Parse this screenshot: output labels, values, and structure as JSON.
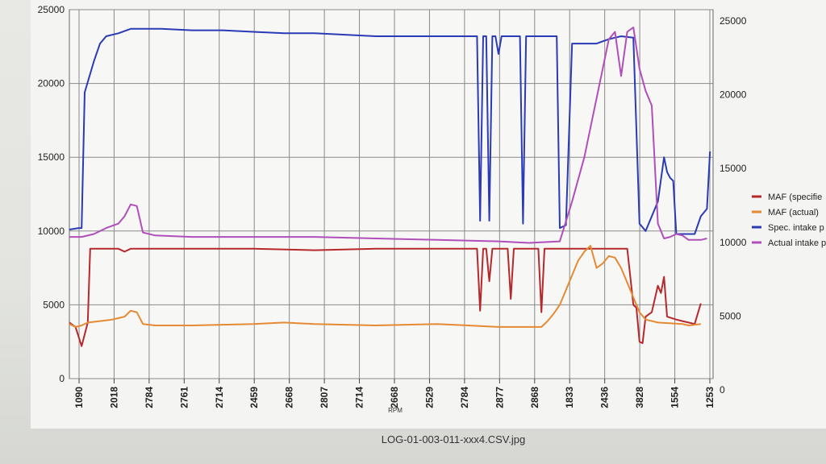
{
  "caption": "LOG-01-003-011-xxx4.CSV.jpg",
  "chart_data": {
    "type": "line",
    "xlabel": "RPM",
    "x_tick_labels": [
      "1090",
      "2018",
      "2784",
      "2761",
      "2714",
      "2459",
      "2668",
      "2807",
      "2714",
      "2668",
      "2529",
      "2784",
      "2877",
      "2868",
      "1833",
      "2436",
      "3828",
      "1554",
      "1253"
    ],
    "y_left": {
      "min": 0,
      "max": 25000,
      "ticks": [
        0,
        5000,
        10000,
        15000,
        20000,
        25000
      ]
    },
    "y_right": {
      "min": 0,
      "max": 25000,
      "ticks": [
        0,
        5000,
        10000,
        15000,
        20000,
        25000
      ]
    },
    "grid": true,
    "legend_position": "right",
    "x_range": [
      0,
      100
    ],
    "series": [
      {
        "name": "MAF (specifie",
        "color": "#b5292c",
        "axis": "left",
        "points": [
          [
            0,
            3800
          ],
          [
            1,
            3500
          ],
          [
            2,
            2200
          ],
          [
            3,
            3800
          ],
          [
            3.4,
            8800
          ],
          [
            8,
            8800
          ],
          [
            9,
            8600
          ],
          [
            10,
            8800
          ],
          [
            20,
            8800
          ],
          [
            30,
            8800
          ],
          [
            40,
            8700
          ],
          [
            50,
            8800
          ],
          [
            60,
            8800
          ],
          [
            65,
            8800
          ],
          [
            66.5,
            8800
          ],
          [
            67,
            4600
          ],
          [
            67.5,
            8800
          ],
          [
            68,
            8800
          ],
          [
            68.5,
            6600
          ],
          [
            69,
            8800
          ],
          [
            71.5,
            8800
          ],
          [
            72,
            5400
          ],
          [
            72.5,
            8800
          ],
          [
            76.5,
            8800
          ],
          [
            77,
            4500
          ],
          [
            77.5,
            8800
          ],
          [
            84,
            8800
          ],
          [
            90,
            8800
          ],
          [
            91,
            8800
          ],
          [
            92,
            5000
          ],
          [
            92.5,
            4800
          ],
          [
            93,
            2500
          ],
          [
            93.5,
            2400
          ],
          [
            94,
            4200
          ],
          [
            95,
            4500
          ],
          [
            96,
            6300
          ],
          [
            96.5,
            5800
          ],
          [
            97,
            6900
          ],
          [
            97.5,
            4200
          ],
          [
            99,
            4000
          ],
          [
            100,
            3900
          ],
          [
            101,
            3800
          ],
          [
            102,
            3700
          ],
          [
            103,
            5100
          ]
        ]
      },
      {
        "name": "MAF (actual)",
        "color": "#e58a34",
        "axis": "left",
        "points": [
          [
            0,
            3700
          ],
          [
            1,
            3500
          ],
          [
            2,
            3600
          ],
          [
            3,
            3800
          ],
          [
            5,
            3900
          ],
          [
            7,
            4000
          ],
          [
            8,
            4100
          ],
          [
            9,
            4200
          ],
          [
            10,
            4600
          ],
          [
            11,
            4500
          ],
          [
            12,
            3700
          ],
          [
            14,
            3600
          ],
          [
            20,
            3600
          ],
          [
            30,
            3700
          ],
          [
            35,
            3800
          ],
          [
            40,
            3700
          ],
          [
            50,
            3600
          ],
          [
            60,
            3700
          ],
          [
            65,
            3600
          ],
          [
            70,
            3500
          ],
          [
            77,
            3500
          ],
          [
            78,
            3900
          ],
          [
            79,
            4400
          ],
          [
            80,
            5000
          ],
          [
            81,
            6000
          ],
          [
            82,
            7000
          ],
          [
            83,
            8000
          ],
          [
            84,
            8600
          ],
          [
            85,
            9000
          ],
          [
            86,
            7500
          ],
          [
            87,
            7800
          ],
          [
            88,
            8300
          ],
          [
            89,
            8200
          ],
          [
            90,
            7500
          ],
          [
            91,
            6500
          ],
          [
            92,
            5500
          ],
          [
            93,
            4500
          ],
          [
            94,
            4000
          ],
          [
            96,
            3800
          ],
          [
            100,
            3700
          ],
          [
            101,
            3600
          ],
          [
            103,
            3700
          ]
        ]
      },
      {
        "name": "Spec. intake p",
        "color": "#2b3ab5",
        "axis": "left",
        "points": [
          [
            0,
            10100
          ],
          [
            1.5,
            10200
          ],
          [
            2,
            10200
          ],
          [
            2.5,
            19400
          ],
          [
            4,
            21500
          ],
          [
            5,
            22700
          ],
          [
            6,
            23200
          ],
          [
            8,
            23400
          ],
          [
            10,
            23700
          ],
          [
            15,
            23700
          ],
          [
            20,
            23600
          ],
          [
            25,
            23600
          ],
          [
            30,
            23500
          ],
          [
            35,
            23400
          ],
          [
            40,
            23400
          ],
          [
            45,
            23300
          ],
          [
            50,
            23200
          ],
          [
            55,
            23200
          ],
          [
            60,
            23200
          ],
          [
            65,
            23200
          ],
          [
            66.5,
            23200
          ],
          [
            67,
            10700
          ],
          [
            67.5,
            23200
          ],
          [
            68,
            23200
          ],
          [
            68.5,
            10700
          ],
          [
            69,
            23200
          ],
          [
            69.5,
            23200
          ],
          [
            70,
            22000
          ],
          [
            70.5,
            23200
          ],
          [
            73.5,
            23200
          ],
          [
            74,
            10500
          ],
          [
            74.5,
            23200
          ],
          [
            76,
            23200
          ],
          [
            79.5,
            23200
          ],
          [
            80,
            10200
          ],
          [
            81,
            10400
          ],
          [
            82,
            22700
          ],
          [
            84,
            22700
          ],
          [
            86,
            22700
          ],
          [
            88,
            23000
          ],
          [
            90,
            23200
          ],
          [
            92,
            23100
          ],
          [
            93,
            10500
          ],
          [
            94,
            10000
          ],
          [
            95,
            11000
          ],
          [
            96,
            12000
          ],
          [
            97,
            15000
          ],
          [
            97.5,
            14000
          ],
          [
            98,
            13600
          ],
          [
            98.5,
            13400
          ],
          [
            99,
            9800
          ],
          [
            100,
            9800
          ],
          [
            101,
            9800
          ],
          [
            102,
            9800
          ],
          [
            103,
            11000
          ],
          [
            104,
            11500
          ],
          [
            104.5,
            15400
          ]
        ]
      },
      {
        "name": "Actual intake p",
        "color": "#b04fba",
        "axis": "left",
        "points": [
          [
            0,
            9600
          ],
          [
            2,
            9600
          ],
          [
            4,
            9800
          ],
          [
            6,
            10200
          ],
          [
            8,
            10500
          ],
          [
            9,
            11000
          ],
          [
            10,
            11800
          ],
          [
            11,
            11700
          ],
          [
            12,
            9900
          ],
          [
            14,
            9700
          ],
          [
            20,
            9600
          ],
          [
            30,
            9600
          ],
          [
            40,
            9600
          ],
          [
            50,
            9500
          ],
          [
            60,
            9400
          ],
          [
            70,
            9300
          ],
          [
            75,
            9200
          ],
          [
            80,
            9300
          ],
          [
            82,
            12000
          ],
          [
            84,
            15000
          ],
          [
            86,
            19000
          ],
          [
            87,
            21000
          ],
          [
            88,
            23000
          ],
          [
            89,
            23500
          ],
          [
            89.5,
            22000
          ],
          [
            90,
            20500
          ],
          [
            91,
            23500
          ],
          [
            92,
            23800
          ],
          [
            93,
            21000
          ],
          [
            94,
            19500
          ],
          [
            95,
            18500
          ],
          [
            96,
            10500
          ],
          [
            97,
            9500
          ],
          [
            98,
            9600
          ],
          [
            99,
            9800
          ],
          [
            100,
            9700
          ],
          [
            101,
            9400
          ],
          [
            102,
            9400
          ],
          [
            103,
            9400
          ],
          [
            104,
            9500
          ]
        ]
      }
    ]
  }
}
